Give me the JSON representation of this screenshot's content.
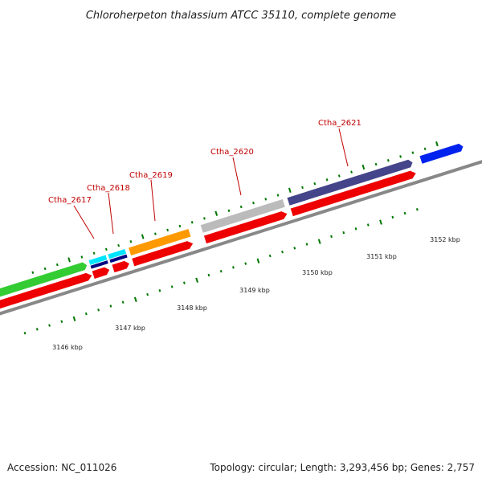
{
  "title": "Chloroherpeton thalassium ATCC 35110, complete genome",
  "footer": {
    "accession": "Accession: NC_011026",
    "topology": "Topology: circular; Length: 3,293,456 bp; Genes: 2,757"
  },
  "gene_labels": [
    "Ctha_2617",
    "Ctha_2618",
    "Ctha_2619",
    "Ctha_2620",
    "Ctha_2621"
  ],
  "tick_labels": [
    "3146 kbp",
    "3147 kbp",
    "3148 kbp",
    "3149 kbp",
    "3150 kbp",
    "3151 kbp",
    "3152 kbp"
  ],
  "colors": {
    "green_feature": "#33cc33",
    "cyan_feature": "#00e5ff",
    "orange_feature": "#ff9900",
    "gray_feature": "#bbbbbb",
    "purple_feature": "#44448a",
    "red_gene": "#ee0000",
    "navy_feature": "#000080",
    "blue_feature": "#0022ee",
    "tick_green": "#007700",
    "backbone": "#888888",
    "label_red": "#c00000"
  }
}
